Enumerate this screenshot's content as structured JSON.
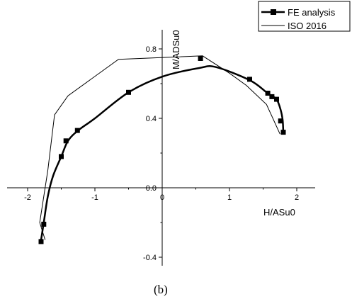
{
  "chart_data": {
    "type": "line",
    "xlabel": "H/ASu0",
    "ylabel": "M/ADSu0",
    "caption": "(b)",
    "xlim": [
      -2.2,
      2.2
    ],
    "ylim": [
      -0.45,
      0.98
    ],
    "x_ticks": [
      {
        "value": -2,
        "label": "-2"
      },
      {
        "value": -1,
        "label": "-1"
      },
      {
        "value": 0,
        "label": "0"
      },
      {
        "value": 1,
        "label": "1"
      },
      {
        "value": 2,
        "label": "2"
      }
    ],
    "y_ticks": [
      {
        "value": -0.4,
        "label": "-0.4"
      },
      {
        "value": 0.0,
        "label": "0.0"
      },
      {
        "value": 0.4,
        "label": "0.4"
      },
      {
        "value": 0.8,
        "label": "0.8"
      }
    ],
    "legend": {
      "position": "top-right",
      "entries": [
        "FE analysis",
        "ISO 2016"
      ]
    },
    "series": [
      {
        "name": "FE analysis",
        "style": "thick line with square markers",
        "color": "#000000",
        "curve": [
          [
            -1.8,
            -0.3
          ],
          [
            -1.76,
            -0.2
          ],
          [
            -1.7,
            -0.05
          ],
          [
            -1.62,
            0.07
          ],
          [
            -1.5,
            0.18
          ],
          [
            -1.4,
            0.27
          ],
          [
            -1.25,
            0.33
          ],
          [
            -1.0,
            0.4
          ],
          [
            -0.5,
            0.55
          ],
          [
            0.0,
            0.64
          ],
          [
            0.55,
            0.69
          ],
          [
            0.8,
            0.695
          ],
          [
            1.3,
            0.62
          ],
          [
            1.55,
            0.55
          ],
          [
            1.62,
            0.53
          ],
          [
            1.7,
            0.51
          ],
          [
            1.76,
            0.45
          ],
          [
            1.79,
            0.39
          ],
          [
            1.8,
            0.32
          ]
        ],
        "markers": [
          [
            -1.8,
            -0.31
          ],
          [
            -1.76,
            -0.21
          ],
          [
            -1.5,
            0.18
          ],
          [
            -1.43,
            0.27
          ],
          [
            -1.26,
            0.33
          ],
          [
            -0.5,
            0.55
          ],
          [
            0.57,
            0.745
          ],
          [
            1.3,
            0.625
          ],
          [
            1.57,
            0.545
          ],
          [
            1.63,
            0.525
          ],
          [
            1.7,
            0.51
          ],
          [
            1.76,
            0.385
          ],
          [
            1.8,
            0.32
          ]
        ]
      },
      {
        "name": "ISO 2016",
        "style": "thin line",
        "color": "#000000",
        "points": [
          [
            -1.74,
            -0.3
          ],
          [
            -1.82,
            -0.2
          ],
          [
            -1.7,
            0.1
          ],
          [
            -1.6,
            0.42
          ],
          [
            -1.4,
            0.53
          ],
          [
            -0.65,
            0.74
          ],
          [
            0.6,
            0.76
          ],
          [
            1.0,
            0.66
          ],
          [
            1.25,
            0.59
          ],
          [
            1.55,
            0.48
          ],
          [
            1.75,
            0.31
          ]
        ]
      }
    ]
  }
}
